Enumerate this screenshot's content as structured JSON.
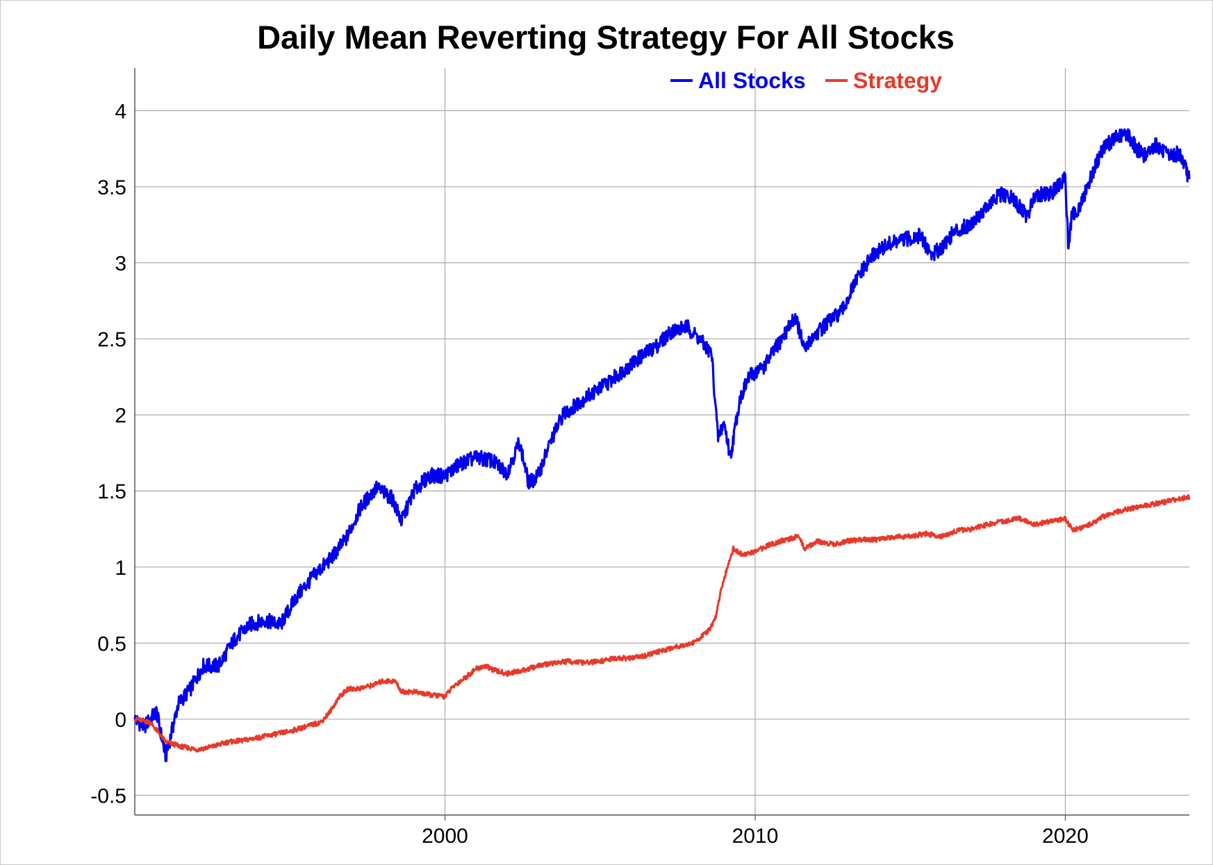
{
  "chart_data": {
    "type": "line",
    "title": "Daily Mean Reverting Strategy For All Stocks",
    "xlabel": "",
    "ylabel": "",
    "xlim": [
      1990.0,
      2024.0
    ],
    "ylim": [
      -0.63,
      4.28
    ],
    "x_ticks": [
      2000,
      2010,
      2020
    ],
    "x_tick_labels": [
      "2000",
      "2010",
      "2020"
    ],
    "y_ticks": [
      -0.5,
      0,
      0.5,
      1,
      1.5,
      2,
      2.5,
      3,
      3.5,
      4
    ],
    "y_tick_labels": [
      "-0.5",
      "0",
      "0.5",
      "1",
      "1.5",
      "2",
      "2.5",
      "3",
      "3.5",
      "4"
    ],
    "grid": true,
    "legend": "top-center",
    "series": [
      {
        "name": "All Stocks",
        "color": "#0000ee",
        "x": [
          1990.0,
          1990.3,
          1990.7,
          1991.0,
          1991.4,
          1991.8,
          1992.2,
          1992.7,
          1993.2,
          1993.7,
          1994.2,
          1994.7,
          1995.2,
          1995.8,
          1996.3,
          1996.8,
          1997.3,
          1997.8,
          1998.3,
          1998.6,
          1999.0,
          1999.5,
          2000.0,
          2000.5,
          2001.0,
          2001.5,
          2002.0,
          2002.4,
          2002.7,
          2003.0,
          2003.4,
          2003.8,
          2004.3,
          2004.8,
          2005.3,
          2005.8,
          2006.3,
          2006.8,
          2007.3,
          2007.8,
          2008.2,
          2008.6,
          2008.8,
          2009.0,
          2009.2,
          2009.5,
          2009.8,
          2010.3,
          2010.8,
          2011.3,
          2011.6,
          2011.8,
          2012.3,
          2012.8,
          2013.3,
          2013.8,
          2014.3,
          2014.8,
          2015.3,
          2015.7,
          2016.0,
          2016.4,
          2016.9,
          2017.4,
          2017.9,
          2018.3,
          2018.8,
          2019.0,
          2019.5,
          2020.0,
          2020.1,
          2020.2,
          2020.5,
          2020.8,
          2021.2,
          2021.6,
          2022.0,
          2022.3,
          2022.6,
          2022.9,
          2023.3,
          2023.7,
          2024.0
        ],
        "values": [
          0.0,
          -0.05,
          0.05,
          -0.25,
          0.1,
          0.2,
          0.35,
          0.35,
          0.52,
          0.62,
          0.65,
          0.62,
          0.8,
          0.95,
          1.05,
          1.18,
          1.4,
          1.52,
          1.45,
          1.3,
          1.5,
          1.6,
          1.6,
          1.68,
          1.72,
          1.7,
          1.62,
          1.82,
          1.55,
          1.6,
          1.82,
          2.0,
          2.08,
          2.15,
          2.22,
          2.3,
          2.38,
          2.45,
          2.55,
          2.58,
          2.5,
          2.4,
          1.85,
          1.95,
          1.72,
          2.1,
          2.25,
          2.32,
          2.48,
          2.65,
          2.42,
          2.5,
          2.6,
          2.68,
          2.9,
          3.05,
          3.12,
          3.15,
          3.18,
          3.05,
          3.1,
          3.2,
          3.25,
          3.35,
          3.45,
          3.42,
          3.3,
          3.45,
          3.45,
          3.55,
          3.1,
          3.3,
          3.38,
          3.55,
          3.75,
          3.82,
          3.85,
          3.75,
          3.7,
          3.78,
          3.7,
          3.72,
          3.55
        ]
      },
      {
        "name": "Strategy",
        "color": "#e8392a",
        "x": [
          1990.0,
          1990.5,
          1991.0,
          1991.5,
          1992.0,
          1992.5,
          1993.0,
          1993.5,
          1994.0,
          1994.5,
          1995.0,
          1995.5,
          1996.0,
          1996.3,
          1996.6,
          1996.9,
          1997.2,
          1997.6,
          1998.0,
          1998.4,
          1998.6,
          1999.0,
          1999.5,
          2000.0,
          2000.3,
          2000.7,
          2001.0,
          2001.3,
          2001.6,
          2002.0,
          2002.5,
          2003.0,
          2003.5,
          2004.0,
          2004.5,
          2005.0,
          2005.5,
          2006.0,
          2006.5,
          2007.0,
          2007.5,
          2008.0,
          2008.5,
          2008.7,
          2008.9,
          2009.1,
          2009.3,
          2009.6,
          2010.0,
          2010.5,
          2011.0,
          2011.4,
          2011.6,
          2012.0,
          2012.5,
          2013.0,
          2013.5,
          2014.0,
          2014.5,
          2015.0,
          2015.5,
          2016.0,
          2016.5,
          2017.0,
          2017.5,
          2018.0,
          2018.5,
          2019.0,
          2019.5,
          2020.0,
          2020.2,
          2020.4,
          2020.8,
          2021.2,
          2021.6,
          2022.0,
          2022.5,
          2023.0,
          2023.5,
          2024.0
        ],
        "values": [
          0.0,
          -0.02,
          -0.15,
          -0.18,
          -0.2,
          -0.18,
          -0.15,
          -0.14,
          -0.12,
          -0.1,
          -0.08,
          -0.05,
          -0.02,
          0.05,
          0.15,
          0.2,
          0.2,
          0.22,
          0.25,
          0.25,
          0.18,
          0.18,
          0.16,
          0.15,
          0.22,
          0.28,
          0.33,
          0.35,
          0.32,
          0.3,
          0.32,
          0.35,
          0.37,
          0.38,
          0.37,
          0.38,
          0.4,
          0.4,
          0.42,
          0.45,
          0.48,
          0.5,
          0.58,
          0.65,
          0.85,
          1.0,
          1.12,
          1.08,
          1.1,
          1.15,
          1.18,
          1.2,
          1.12,
          1.17,
          1.15,
          1.17,
          1.18,
          1.18,
          1.2,
          1.2,
          1.22,
          1.2,
          1.24,
          1.25,
          1.28,
          1.3,
          1.32,
          1.28,
          1.3,
          1.32,
          1.25,
          1.25,
          1.28,
          1.33,
          1.36,
          1.38,
          1.4,
          1.42,
          1.44,
          1.46
        ]
      }
    ]
  }
}
